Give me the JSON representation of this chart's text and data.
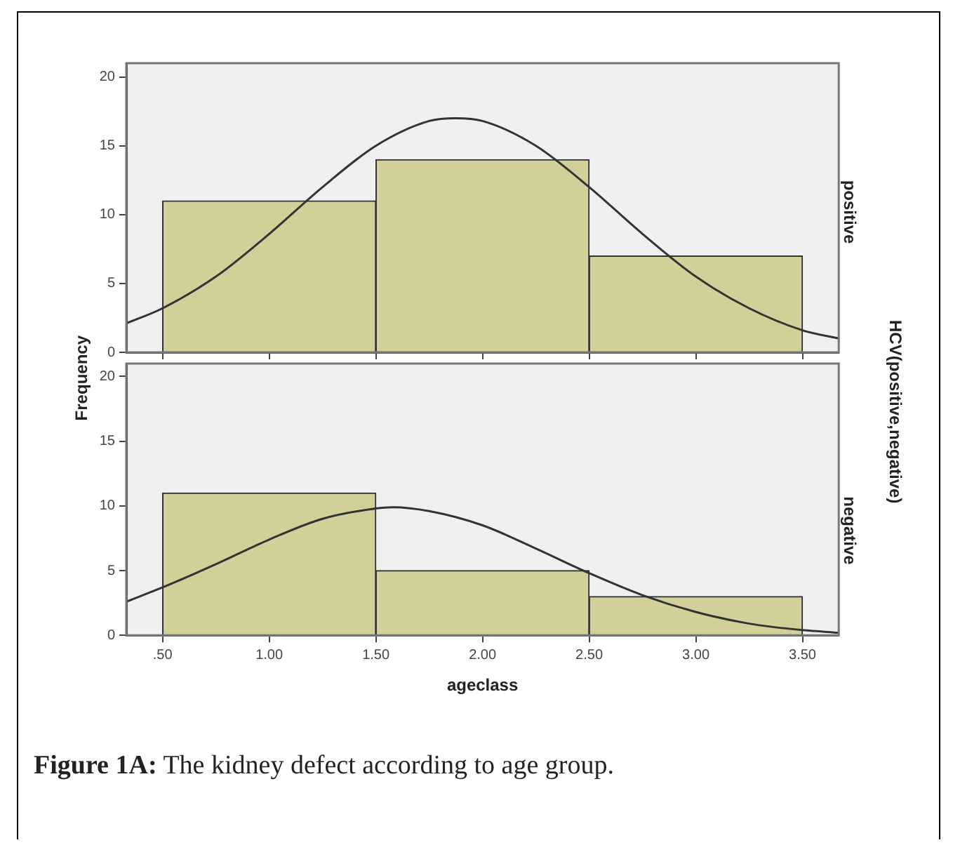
{
  "chart_data": [
    {
      "type": "histogram",
      "title": "positive",
      "ylabel": "Frequency",
      "annotations": [
        "HCV(positive,negative)"
      ],
      "xlim": [
        0.33,
        3.67
      ],
      "xticks": [
        {
          "value": 0.5,
          "label": null
        },
        {
          "value": 1,
          "label": null
        },
        {
          "value": 1.5,
          "label": null
        },
        {
          "value": 2,
          "label": null
        },
        {
          "value": 2.5,
          "label": null
        },
        {
          "value": 3,
          "label": null
        },
        {
          "value": 3.5,
          "label": null
        }
      ],
      "ylim": [
        0,
        21
      ],
      "yticks": [
        0,
        5,
        10,
        15,
        20
      ],
      "tick_labels": "y",
      "grid": false,
      "legend": false,
      "series": [
        {
          "type": "histogram",
          "color": "#d3cf98",
          "bins": [
            0.5,
            1.5,
            2.5,
            3.5
          ],
          "values": [
            11,
            14,
            7
          ]
        },
        {
          "type": "line",
          "color": "#333333",
          "x": [
            0.33,
            0.5,
            0.75,
            1,
            1.25,
            1.5,
            1.75,
            1.875,
            2,
            2.25,
            2.5,
            2.75,
            3,
            3.25,
            3.5,
            3.67
          ],
          "values": [
            2.1,
            3.2,
            5.5,
            8.6,
            12,
            15,
            16.8,
            17,
            16.8,
            15,
            12,
            8.6,
            5.5,
            3.2,
            1.6,
            1
          ]
        }
      ]
    },
    {
      "type": "histogram",
      "title": "negative",
      "xlabel": "ageclass",
      "annotations": [
        "Figure 1A: The kidney defect according to age group."
      ],
      "xlim": [
        0.33,
        3.67
      ],
      "xticks": [
        {
          "value": 0.5,
          "label": ".50"
        },
        {
          "value": 1,
          "label": "1.00"
        },
        {
          "value": 1.5,
          "label": "1.50"
        },
        {
          "value": 2,
          "label": "2.00"
        },
        {
          "value": 2.5,
          "label": "2.50"
        },
        {
          "value": 3,
          "label": "3.00"
        },
        {
          "value": 3.5,
          "label": "3.50"
        }
      ],
      "ylim": [
        0,
        21
      ],
      "yticks": [
        0,
        5,
        10,
        15,
        20
      ],
      "grid": false,
      "legend": false,
      "series": [
        {
          "type": "histogram",
          "color": "#d3cf98",
          "bins": [
            0.5,
            1.5,
            2.5,
            3.5
          ],
          "values": [
            11,
            5,
            3
          ]
        },
        {
          "type": "line",
          "color": "#333333",
          "x": [
            0.33,
            0.5,
            0.75,
            1,
            1.25,
            1.5,
            1.58,
            1.75,
            2,
            2.25,
            2.5,
            2.75,
            3,
            3.25,
            3.5,
            3.67
          ],
          "values": [
            2.6,
            3.7,
            5.5,
            7.4,
            9,
            9.8,
            9.9,
            9.6,
            8.5,
            6.7,
            4.8,
            3.1,
            1.8,
            0.9,
            0.4,
            0.2
          ]
        }
      ]
    }
  ]
}
